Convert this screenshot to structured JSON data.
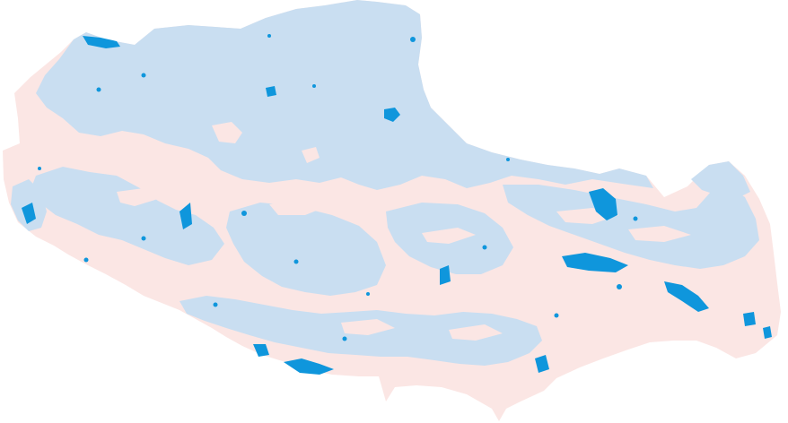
{
  "map": {
    "colors": {
      "background": "#ffffff",
      "land_pink": "#fbe6e4",
      "region_light_blue": "#c9def1",
      "feature_blue": "#0f96dc"
    },
    "regions": [
      {
        "name": "pink-base",
        "color_key": "land_pink"
      },
      {
        "name": "light-blue",
        "color_key": "region_light_blue"
      },
      {
        "name": "dark-blue",
        "color_key": "feature_blue"
      }
    ]
  }
}
